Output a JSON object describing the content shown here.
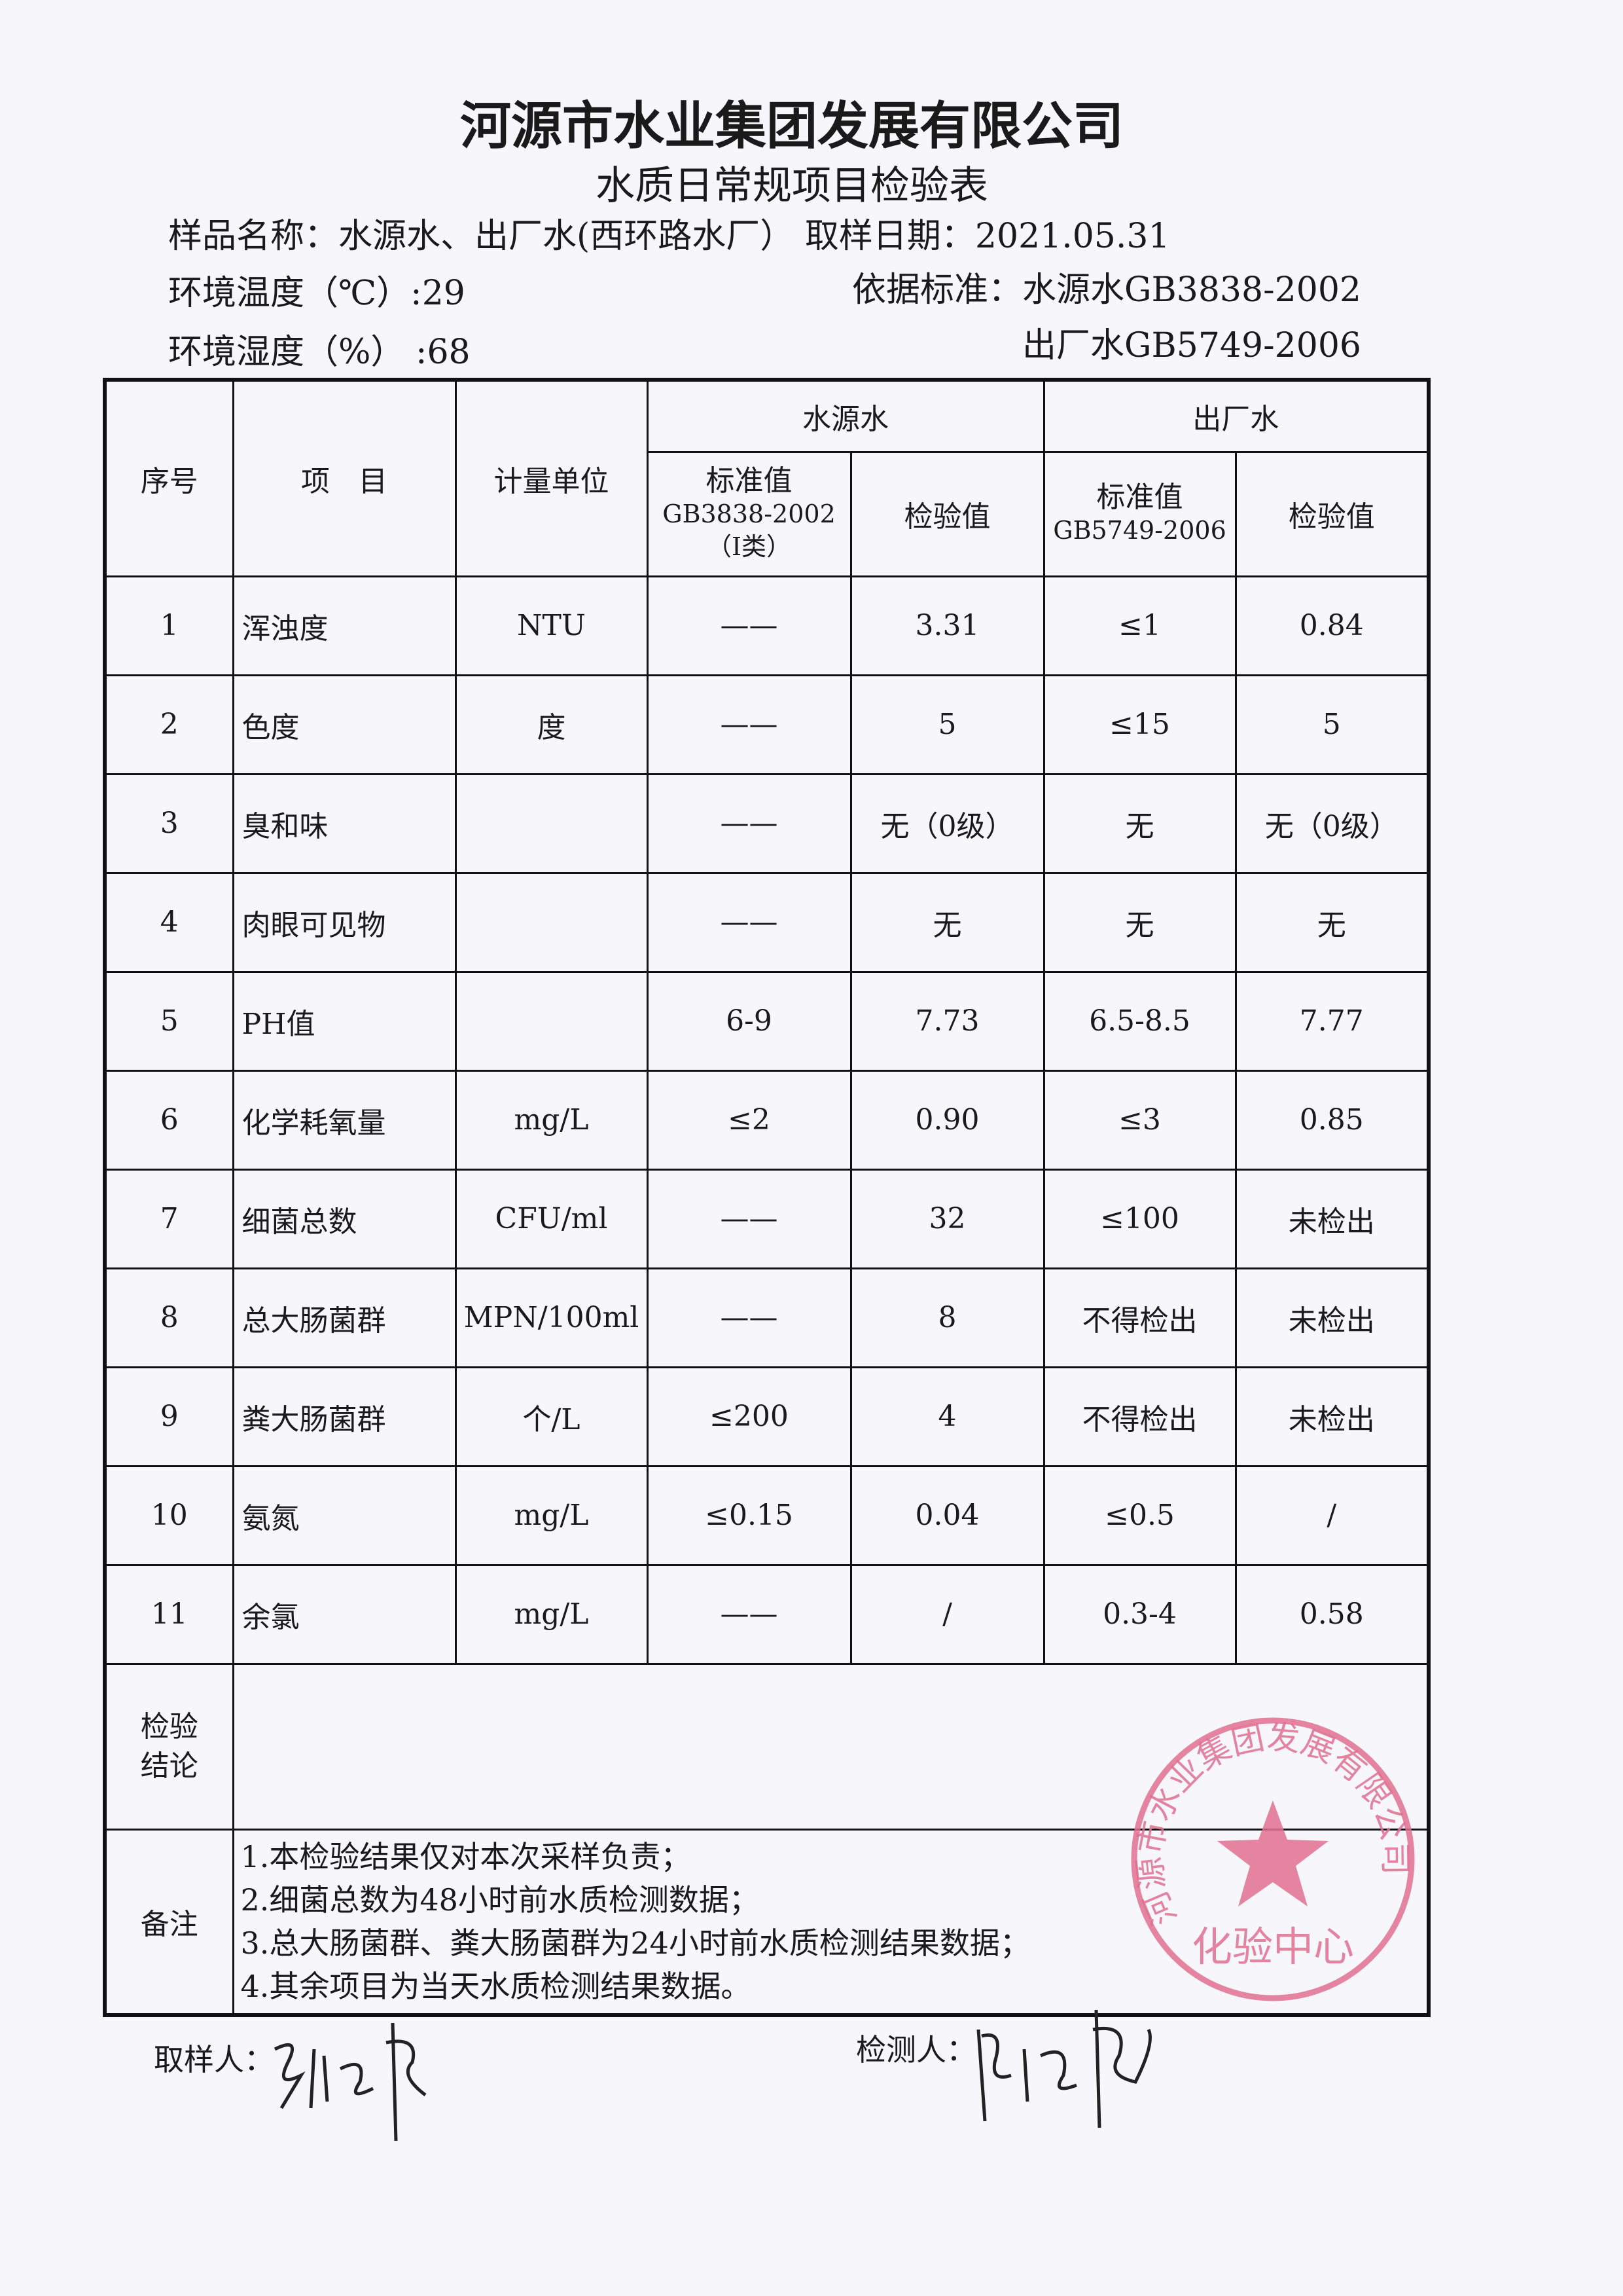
{
  "header": {
    "company": "河源市水业集团发展有限公司",
    "form_title": "水质日常规项目检验表",
    "sample_name_label": "样品名称：",
    "sample_name": "水源水、出厂水(西环路水厂）",
    "sampling_date_label": "取样日期：",
    "sampling_date": "2021.05.31",
    "temperature_label": "环境温度（℃）:",
    "temperature": "29",
    "humidity_label": "环境湿度（%）  :",
    "humidity": "68",
    "standard_label": "依据标准：",
    "standard_source": "水源水GB3838-2002",
    "standard_output": "出厂水GB5749-2006"
  },
  "table": {
    "col_no": "序号",
    "col_item": "项　目",
    "col_unit": "计量单位",
    "group_source": "水源水",
    "group_output": "出厂水",
    "std_label": "标准值",
    "source_std_code": "GB3838-2002",
    "source_std_class": "（Ⅰ类）",
    "output_std_code": "GB5749-2006",
    "test_value": "检验值",
    "rows": [
      {
        "no": "1",
        "item": "浑浊度",
        "unit": "NTU",
        "src_std": "——",
        "src_val": "3.31",
        "out_std": "≤1",
        "out_val": "0.84"
      },
      {
        "no": "2",
        "item": "色度",
        "unit": "度",
        "src_std": "——",
        "src_val": "5",
        "out_std": "≤15",
        "out_val": "5"
      },
      {
        "no": "3",
        "item": "臭和味",
        "unit": "",
        "src_std": "——",
        "src_val": "无（0级）",
        "out_std": "无",
        "out_val": "无（0级）"
      },
      {
        "no": "4",
        "item": "肉眼可见物",
        "unit": "",
        "src_std": "——",
        "src_val": "无",
        "out_std": "无",
        "out_val": "无"
      },
      {
        "no": "5",
        "item": "PH值",
        "unit": "",
        "src_std": "6-9",
        "src_val": "7.73",
        "out_std": "6.5-8.5",
        "out_val": "7.77"
      },
      {
        "no": "6",
        "item": "化学耗氧量",
        "unit": "mg/L",
        "src_std": "≤2",
        "src_val": "0.90",
        "out_std": "≤3",
        "out_val": "0.85"
      },
      {
        "no": "7",
        "item": "细菌总数",
        "unit": "CFU/ml",
        "src_std": "——",
        "src_val": "32",
        "out_std": "≤100",
        "out_val": "未检出"
      },
      {
        "no": "8",
        "item": "总大肠菌群",
        "unit": "MPN/100ml",
        "src_std": "——",
        "src_val": "8",
        "out_std": "不得检出",
        "out_val": "未检出"
      },
      {
        "no": "9",
        "item": "粪大肠菌群",
        "unit": "个/L",
        "src_std": "≤200",
        "src_val": "4",
        "out_std": "不得检出",
        "out_val": "未检出"
      },
      {
        "no": "10",
        "item": "氨氮",
        "unit": "mg/L",
        "src_std": "≤0.15",
        "src_val": "0.04",
        "out_std": "≤0.5",
        "out_val": "/"
      },
      {
        "no": "11",
        "item": "余氯",
        "unit": "mg/L",
        "src_std": "——",
        "src_val": "/",
        "out_std": "0.3-4",
        "out_val": "0.58"
      }
    ],
    "conclusion_label": "检验结论",
    "conclusion": "",
    "remarks_label": "备注",
    "remarks": [
      "1.本检验结果仅对本次采样负责；",
      "2.细菌总数为48小时前水质检测数据；",
      "3.总大肠菌群、粪大肠菌群为24小时前水质检测结果数据；",
      "4.其余项目为当天水质检测结果数据。"
    ]
  },
  "footer": {
    "sampler_label": "取样人：",
    "tester_label": "检测人："
  },
  "stamp": {
    "ring_text": "河源市水业集团发展有限公司",
    "center_text": "化验中心",
    "color": "#e0708f"
  }
}
